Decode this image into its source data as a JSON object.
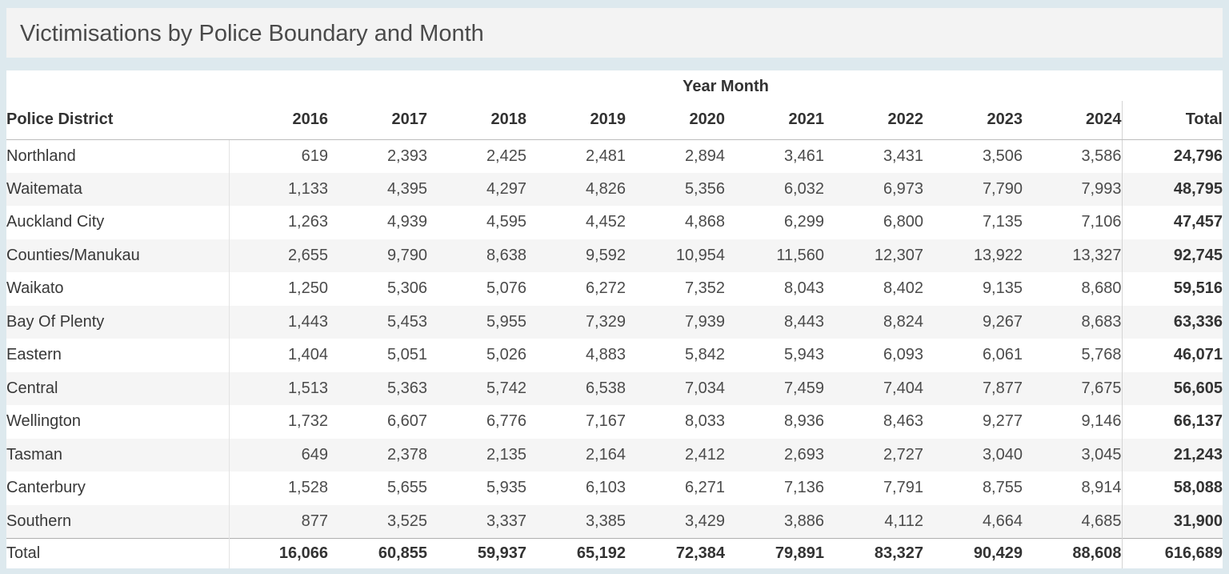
{
  "title": "Victimisations by Police Boundary and Month",
  "colors": {
    "page_background": "#dde9ee",
    "title_bar_background": "#f3f3f3",
    "panel_background": "#ffffff",
    "row_band": "#f5f5f5",
    "text_dark": "#323232",
    "text_value": "#4b4b4b"
  },
  "chart_data": {
    "type": "table",
    "title": "Victimisations by Police Boundary and Month",
    "column_group_label": "Year Month",
    "row_field_label": "Police District",
    "columns": [
      "2016",
      "2017",
      "2018",
      "2019",
      "2020",
      "2021",
      "2022",
      "2023",
      "2024"
    ],
    "total_column_label": "Total",
    "rows": [
      {
        "label": "Northland",
        "values": [
          619,
          2393,
          2425,
          2481,
          2894,
          3461,
          3431,
          3506,
          3586
        ],
        "total": 24796
      },
      {
        "label": "Waitemata",
        "values": [
          1133,
          4395,
          4297,
          4826,
          5356,
          6032,
          6973,
          7790,
          7993
        ],
        "total": 48795
      },
      {
        "label": "Auckland City",
        "values": [
          1263,
          4939,
          4595,
          4452,
          4868,
          6299,
          6800,
          7135,
          7106
        ],
        "total": 47457
      },
      {
        "label": "Counties/Manukau",
        "values": [
          2655,
          9790,
          8638,
          9592,
          10954,
          11560,
          12307,
          13922,
          13327
        ],
        "total": 92745
      },
      {
        "label": "Waikato",
        "values": [
          1250,
          5306,
          5076,
          6272,
          7352,
          8043,
          8402,
          9135,
          8680
        ],
        "total": 59516
      },
      {
        "label": "Bay Of Plenty",
        "values": [
          1443,
          5453,
          5955,
          7329,
          7939,
          8443,
          8824,
          9267,
          8683
        ],
        "total": 63336
      },
      {
        "label": "Eastern",
        "values": [
          1404,
          5051,
          5026,
          4883,
          5842,
          5943,
          6093,
          6061,
          5768
        ],
        "total": 46071
      },
      {
        "label": "Central",
        "values": [
          1513,
          5363,
          5742,
          6538,
          7034,
          7459,
          7404,
          7877,
          7675
        ],
        "total": 56605
      },
      {
        "label": "Wellington",
        "values": [
          1732,
          6607,
          6776,
          7167,
          8033,
          8936,
          8463,
          9277,
          9146
        ],
        "total": 66137
      },
      {
        "label": "Tasman",
        "values": [
          649,
          2378,
          2135,
          2164,
          2412,
          2693,
          2727,
          3040,
          3045
        ],
        "total": 21243
      },
      {
        "label": "Canterbury",
        "values": [
          1528,
          5655,
          5935,
          6103,
          6271,
          7136,
          7791,
          8755,
          8914
        ],
        "total": 58088
      },
      {
        "label": "Southern",
        "values": [
          877,
          3525,
          3337,
          3385,
          3429,
          3886,
          4112,
          4664,
          4685
        ],
        "total": 31900
      }
    ],
    "grand_total": {
      "label": "Total",
      "values": [
        16066,
        60855,
        59937,
        65192,
        72384,
        79891,
        83327,
        90429,
        88608
      ],
      "total": 616689
    }
  }
}
